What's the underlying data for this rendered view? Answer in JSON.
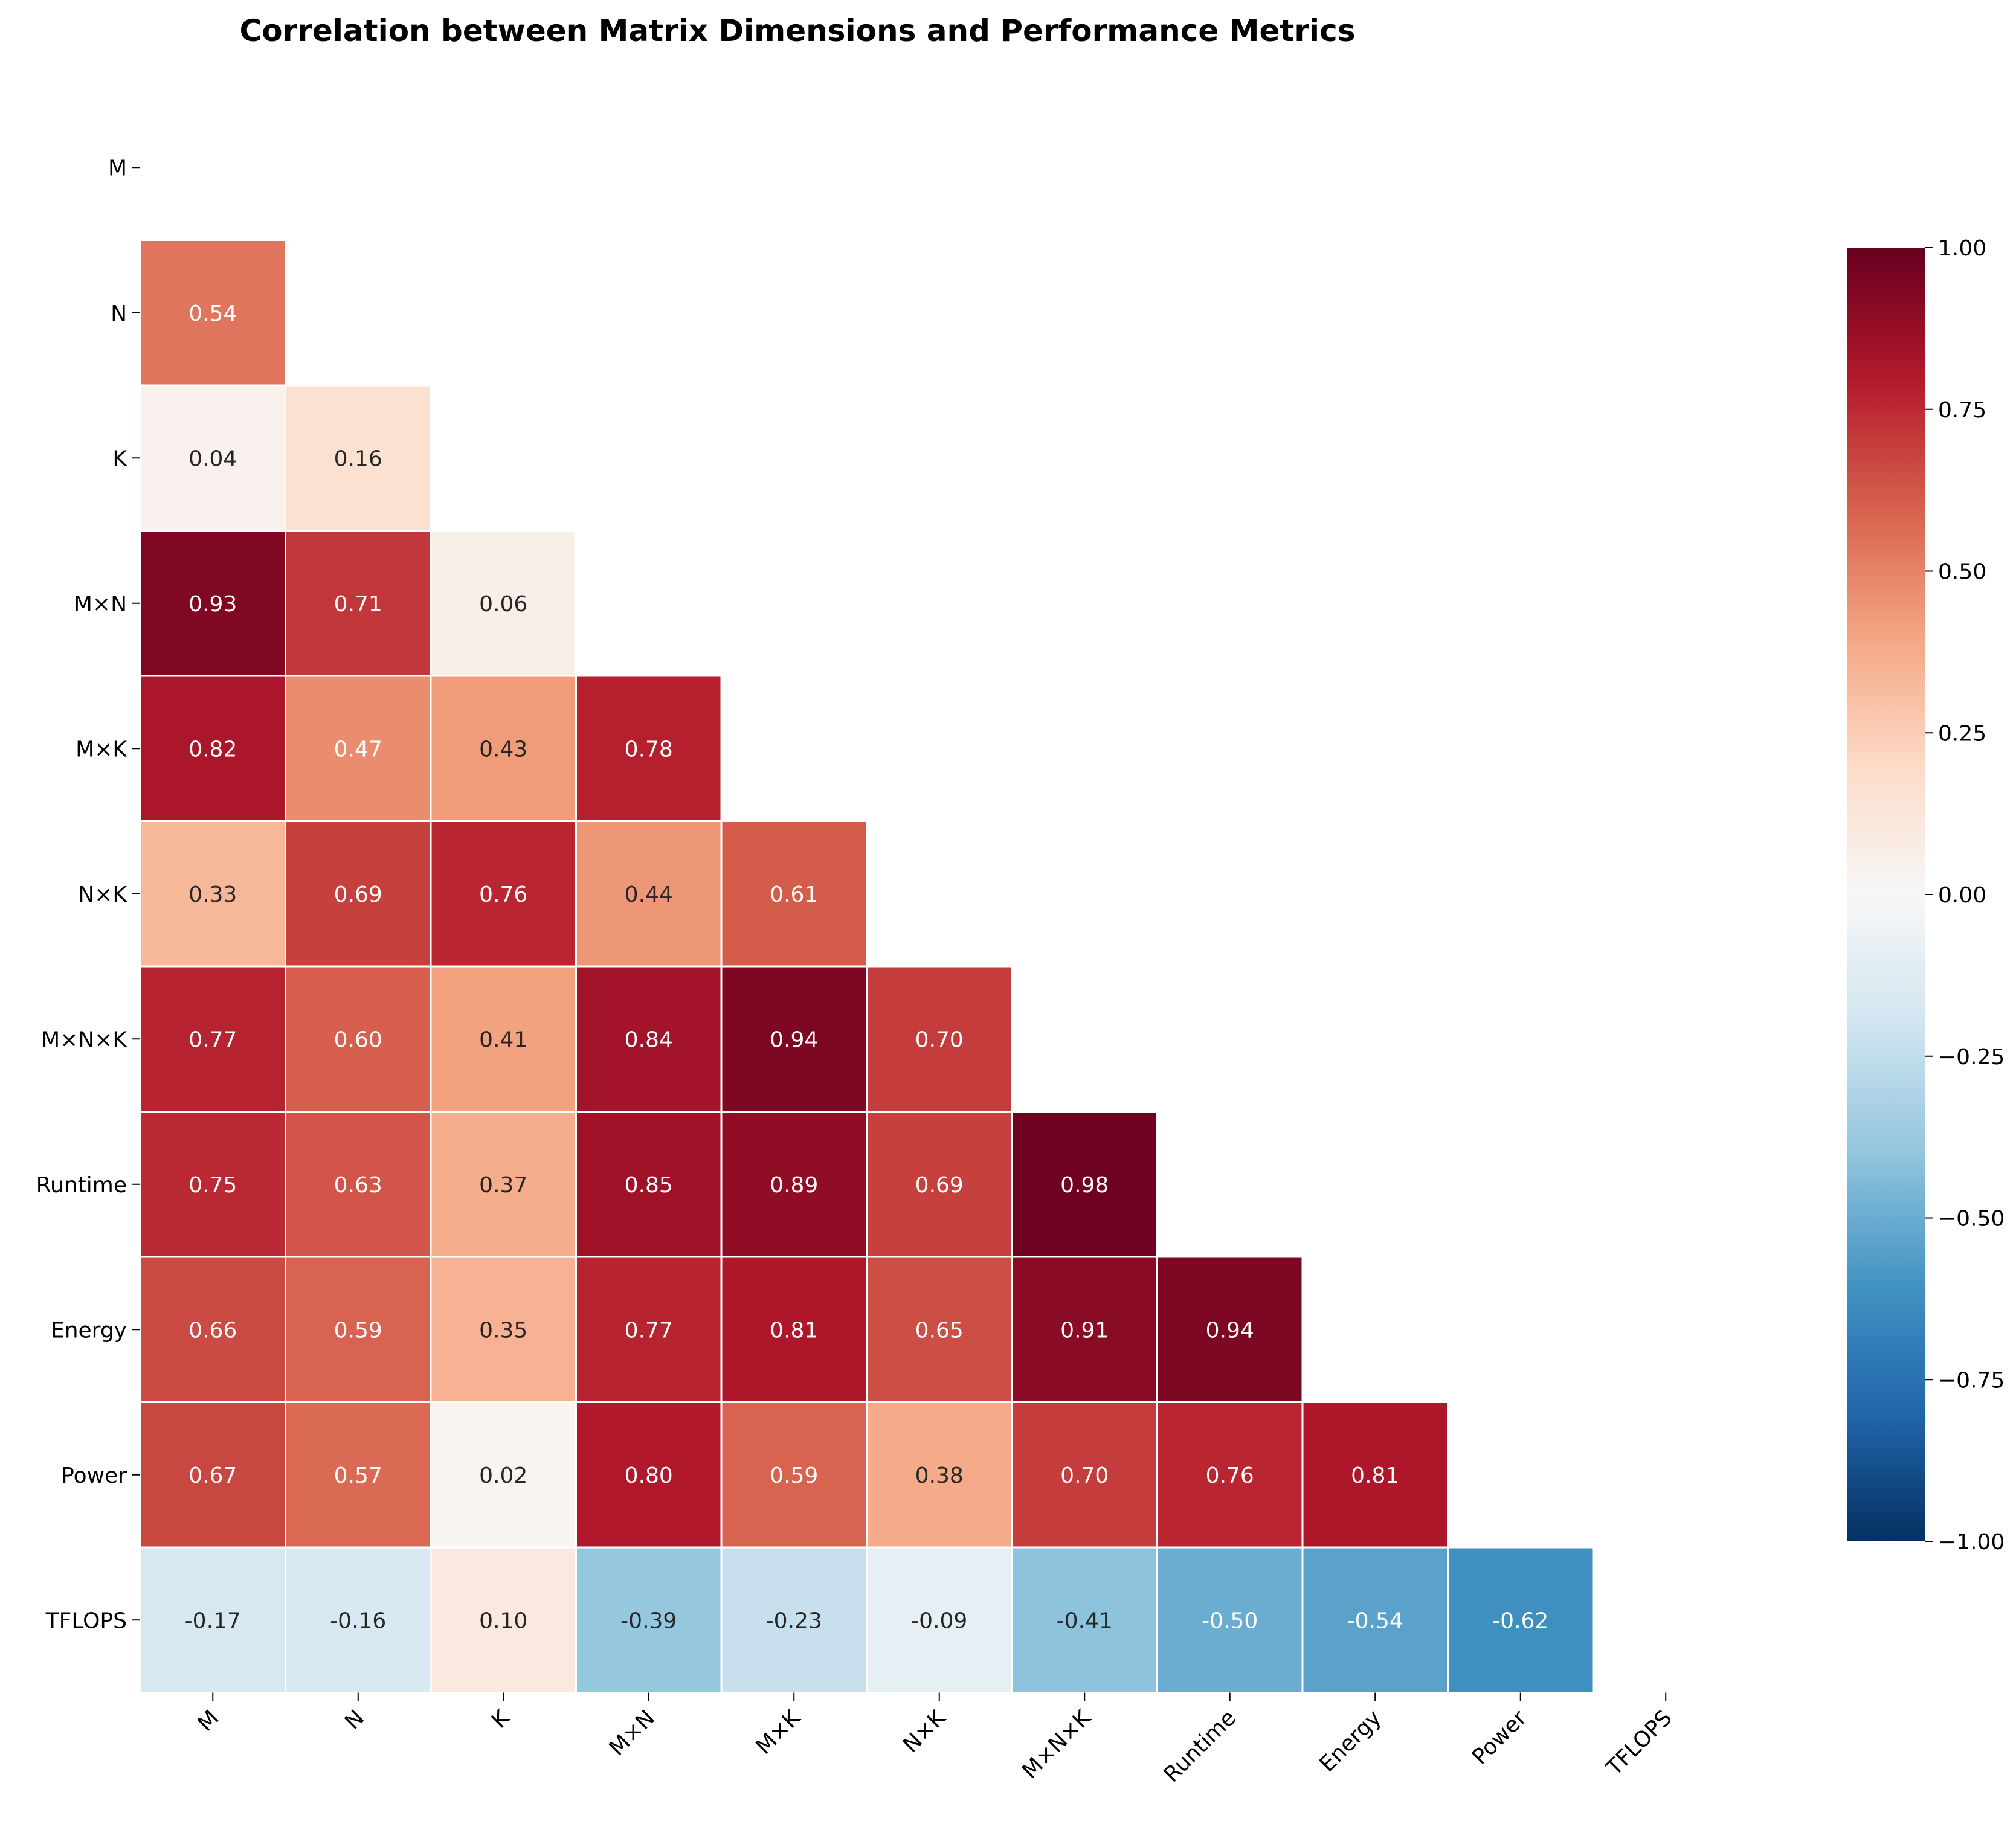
{
  "chart_data": {
    "type": "heatmap",
    "title": "Correlation between Matrix Dimensions and Performance Metrics",
    "labels": [
      "M",
      "N",
      "K",
      "M×N",
      "M×K",
      "N×K",
      "M×N×K",
      "Runtime",
      "Energy",
      "Power",
      "TFLOPS"
    ],
    "mask": "upper-triangle-including-diagonal",
    "matrix": [
      [
        null,
        null,
        null,
        null,
        null,
        null,
        null,
        null,
        null,
        null,
        null
      ],
      [
        0.54,
        null,
        null,
        null,
        null,
        null,
        null,
        null,
        null,
        null,
        null
      ],
      [
        0.04,
        0.16,
        null,
        null,
        null,
        null,
        null,
        null,
        null,
        null,
        null
      ],
      [
        0.93,
        0.71,
        0.06,
        null,
        null,
        null,
        null,
        null,
        null,
        null,
        null
      ],
      [
        0.82,
        0.47,
        0.43,
        0.78,
        null,
        null,
        null,
        null,
        null,
        null,
        null
      ],
      [
        0.33,
        0.69,
        0.76,
        0.44,
        0.61,
        null,
        null,
        null,
        null,
        null,
        null
      ],
      [
        0.77,
        0.6,
        0.41,
        0.84,
        0.94,
        0.7,
        null,
        null,
        null,
        null,
        null
      ],
      [
        0.75,
        0.63,
        0.37,
        0.85,
        0.89,
        0.69,
        0.98,
        null,
        null,
        null,
        null
      ],
      [
        0.66,
        0.59,
        0.35,
        0.77,
        0.81,
        0.65,
        0.91,
        0.94,
        null,
        null,
        null
      ],
      [
        0.67,
        0.57,
        0.02,
        0.8,
        0.59,
        0.38,
        0.7,
        0.76,
        0.81,
        null,
        null
      ],
      [
        -0.17,
        -0.16,
        0.1,
        -0.39,
        -0.23,
        -0.09,
        -0.41,
        -0.5,
        -0.54,
        -0.62,
        null
      ]
    ],
    "colorbar": {
      "colormap": "RdBu_r",
      "range": [
        -1.0,
        1.0
      ],
      "ticks": [
        -1.0,
        -0.75,
        -0.5,
        -0.25,
        0.0,
        0.25,
        0.5,
        0.75,
        1.0
      ],
      "tick_labels": [
        "−1.00",
        "−0.75",
        "−0.50",
        "−0.25",
        "0.00",
        "0.25",
        "0.50",
        "0.75",
        "1.00"
      ]
    },
    "colors": {
      "min": "#053061",
      "mid": "#f7f7f7",
      "max": "#67001f",
      "cell_border": "#ffffff"
    }
  }
}
